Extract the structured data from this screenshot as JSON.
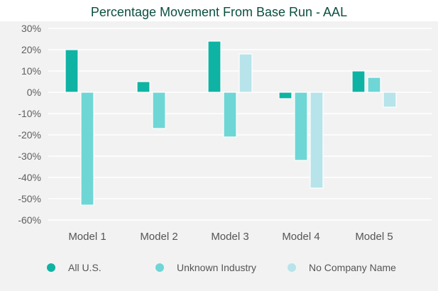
{
  "chart_data": {
    "type": "bar",
    "title": "Percentage Movement From Base Run - AAL",
    "categories": [
      "Model 1",
      "Model 2",
      "Model 3",
      "Model 4",
      "Model 5"
    ],
    "series": [
      {
        "name": "All U.S.",
        "color": "#0fb3a3",
        "values": [
          20,
          5,
          24,
          -3,
          10
        ]
      },
      {
        "name": "Unknown Industry",
        "color": "#6fd6d6",
        "values": [
          -53,
          -17,
          -21,
          -32,
          7
        ]
      },
      {
        "name": "No Company Name",
        "color": "#b6e4ea",
        "values": [
          null,
          null,
          18,
          -45,
          -7
        ]
      }
    ],
    "yticks": [
      "30%",
      "20%",
      "10%",
      "0%",
      "-10%",
      "-20%",
      "-30%",
      "-40%",
      "-50%",
      "-60%"
    ],
    "ylim": [
      -60,
      30
    ],
    "grid": true,
    "legend": "bottom",
    "xlabel": "",
    "ylabel": ""
  }
}
